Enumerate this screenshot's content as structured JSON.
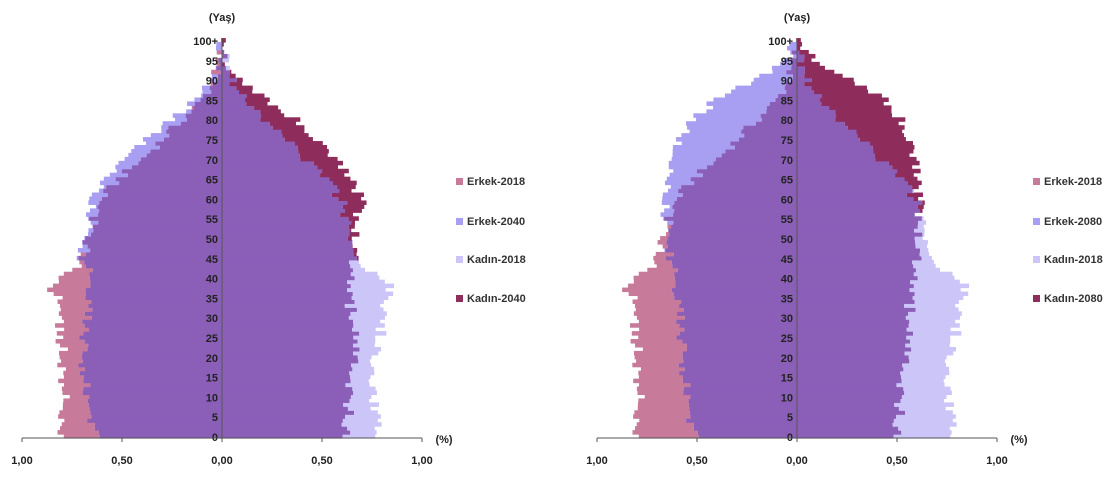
{
  "chart_data": [
    {
      "type": "bar",
      "orientation": "horizontal-pyramid",
      "title": "",
      "ylabel": "(Yaş)",
      "xlabel": "(%)",
      "xlim": [
        -1.0,
        1.0
      ],
      "x_ticks": [
        "1,00",
        "0,50",
        "0,00",
        "0,50",
        "1,00"
      ],
      "age_ticks": [
        "100+",
        "95",
        "90",
        "85",
        "80",
        "75",
        "70",
        "65",
        "60",
        "55",
        "50",
        "45",
        "40",
        "35",
        "30",
        "25",
        "20",
        "15",
        "10",
        "5",
        "0"
      ],
      "age_points": [
        0,
        5,
        10,
        15,
        20,
        25,
        30,
        35,
        38,
        42,
        45,
        50,
        55,
        60,
        65,
        70,
        75,
        80,
        85,
        90,
        95,
        100
      ],
      "legend": [
        "Erkek-2018",
        "Erkek-2040",
        "Kadın-2018",
        "Kadın-2040"
      ],
      "series": [
        {
          "name": "Erkek-2018",
          "side": "male",
          "color": "#c77a9a",
          "values": [
            0.81,
            0.8,
            0.79,
            0.8,
            0.79,
            0.81,
            0.81,
            0.82,
            0.86,
            0.74,
            0.7,
            0.66,
            0.64,
            0.6,
            0.52,
            0.4,
            0.3,
            0.2,
            0.1,
            0.04,
            0.01,
            0.0
          ]
        },
        {
          "name": "Erkek-2040",
          "side": "male",
          "color": "#a89ef2",
          "values": [
            0.64,
            0.65,
            0.67,
            0.68,
            0.7,
            0.69,
            0.68,
            0.67,
            0.66,
            0.67,
            0.7,
            0.68,
            0.66,
            0.64,
            0.58,
            0.48,
            0.37,
            0.25,
            0.12,
            0.04,
            0.01,
            0.0
          ]
        },
        {
          "name": "Kadın-2018",
          "side": "female",
          "color": "#cbc6f7",
          "values": [
            0.78,
            0.77,
            0.76,
            0.76,
            0.77,
            0.79,
            0.8,
            0.82,
            0.85,
            0.74,
            0.68,
            0.64,
            0.62,
            0.59,
            0.52,
            0.42,
            0.32,
            0.22,
            0.11,
            0.05,
            0.01,
            0.0
          ]
        },
        {
          "name": "Kadın-2040",
          "side": "female",
          "color": "#8e2c5c",
          "values": [
            0.62,
            0.63,
            0.64,
            0.65,
            0.66,
            0.66,
            0.65,
            0.64,
            0.64,
            0.65,
            0.66,
            0.67,
            0.68,
            0.7,
            0.64,
            0.57,
            0.47,
            0.37,
            0.22,
            0.08,
            0.02,
            0.0
          ]
        }
      ],
      "colors": {
        "overlap": "#8b5fb8",
        "axis": "#555555"
      }
    },
    {
      "type": "bar",
      "orientation": "horizontal-pyramid",
      "title": "",
      "ylabel": "(Yaş)",
      "xlabel": "(%)",
      "xlim": [
        -1.0,
        1.0
      ],
      "x_ticks": [
        "1,00",
        "0,50",
        "0,00",
        "0,50",
        "1,00"
      ],
      "age_ticks": [
        "100+",
        "95",
        "90",
        "85",
        "80",
        "75",
        "70",
        "65",
        "60",
        "55",
        "50",
        "45",
        "40",
        "35",
        "30",
        "25",
        "20",
        "15",
        "10",
        "5",
        "0"
      ],
      "age_points": [
        0,
        5,
        10,
        15,
        20,
        25,
        30,
        35,
        38,
        42,
        45,
        50,
        55,
        60,
        65,
        70,
        75,
        80,
        85,
        90,
        95,
        100
      ],
      "legend": [
        "Erkek-2018",
        "Erkek-2080",
        "Kadın-2018",
        "Kadın-2080"
      ],
      "series": [
        {
          "name": "Erkek-2018",
          "side": "male",
          "color": "#c77a9a",
          "values": [
            0.81,
            0.8,
            0.79,
            0.8,
            0.79,
            0.81,
            0.81,
            0.82,
            0.86,
            0.74,
            0.7,
            0.66,
            0.64,
            0.6,
            0.52,
            0.4,
            0.3,
            0.2,
            0.1,
            0.04,
            0.01,
            0.0
          ]
        },
        {
          "name": "Erkek-2080",
          "side": "male",
          "color": "#a89ef2",
          "values": [
            0.52,
            0.53,
            0.54,
            0.56,
            0.57,
            0.58,
            0.59,
            0.6,
            0.61,
            0.62,
            0.63,
            0.64,
            0.66,
            0.65,
            0.64,
            0.62,
            0.58,
            0.52,
            0.4,
            0.2,
            0.06,
            0.0
          ]
        },
        {
          "name": "Kadın-2018",
          "side": "female",
          "color": "#cbc6f7",
          "values": [
            0.78,
            0.77,
            0.76,
            0.76,
            0.77,
            0.79,
            0.8,
            0.82,
            0.85,
            0.74,
            0.68,
            0.64,
            0.62,
            0.59,
            0.52,
            0.42,
            0.32,
            0.22,
            0.11,
            0.05,
            0.01,
            0.0
          ]
        },
        {
          "name": "Kadın-2080",
          "side": "female",
          "color": "#8e2c5c",
          "values": [
            0.5,
            0.51,
            0.52,
            0.53,
            0.54,
            0.55,
            0.56,
            0.57,
            0.58,
            0.59,
            0.6,
            0.61,
            0.62,
            0.61,
            0.6,
            0.59,
            0.56,
            0.52,
            0.44,
            0.26,
            0.1,
            0.0
          ]
        }
      ],
      "colors": {
        "overlap": "#8b5fb8",
        "axis": "#555555"
      }
    }
  ]
}
